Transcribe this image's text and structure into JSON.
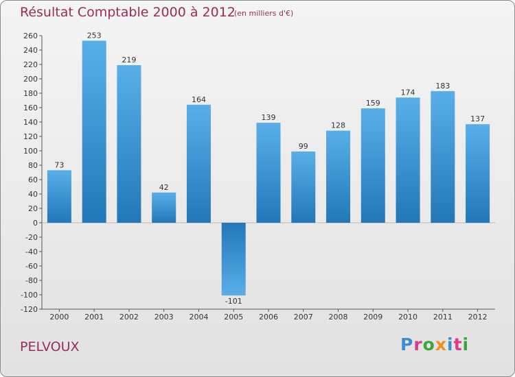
{
  "header": {
    "title": "Résultat Comptable 2000 à 2012",
    "subtitle": "(en milliers d'€)"
  },
  "footer": {
    "commune": "PELVOUX",
    "logo_letters": [
      "P",
      "r",
      "o",
      "x",
      "i",
      "t",
      "i"
    ],
    "logo_colors": [
      "#3a8fd0",
      "#e0388a",
      "#3aa53a",
      "#f09020",
      "#3a8fd0",
      "#e0388a",
      "#3aa53a"
    ]
  },
  "chart_data": {
    "type": "bar",
    "title": "Résultat Comptable 2000 à 2012",
    "subtitle": "(en milliers d'€)",
    "xlabel": "",
    "ylabel": "",
    "categories": [
      "2000",
      "2001",
      "2002",
      "2003",
      "2004",
      "2005",
      "2006",
      "2007",
      "2008",
      "2009",
      "2010",
      "2011",
      "2012"
    ],
    "values": [
      73,
      253,
      219,
      42,
      164,
      -101,
      139,
      99,
      128,
      159,
      174,
      183,
      137
    ],
    "data_labels": [
      "73",
      "253",
      "219",
      "42",
      "164",
      "-101",
      "139",
      "99",
      "128",
      "159",
      "174",
      "183",
      "137"
    ],
    "ylim": [
      -120,
      260
    ],
    "y_ticks": [
      260,
      240,
      220,
      200,
      180,
      160,
      140,
      120,
      100,
      80,
      60,
      40,
      20,
      0,
      -20,
      -40,
      -60,
      -80,
      -100,
      -120
    ],
    "grid": false,
    "bar_color_light": "#5aaee8",
    "bar_color_dark": "#2377b8"
  }
}
